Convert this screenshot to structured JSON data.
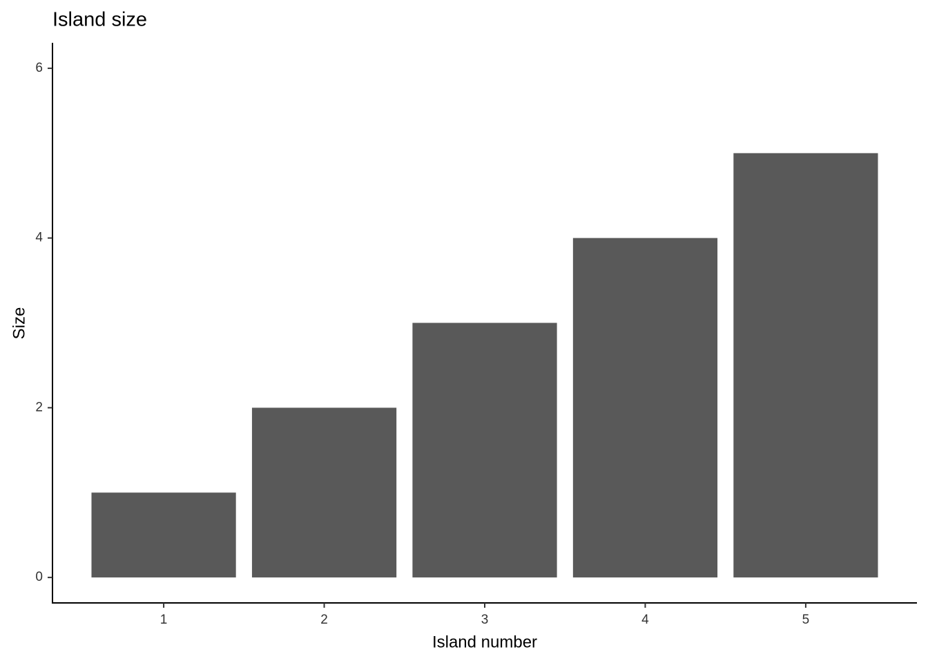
{
  "chart_data": {
    "type": "bar",
    "title": "Island size",
    "x_label": "Island number",
    "y_label": "Size",
    "categories": [
      "1",
      "2",
      "3",
      "4",
      "5"
    ],
    "values": [
      1,
      2,
      3,
      4,
      5
    ],
    "color": "#595959",
    "ylim": [
      -0.3,
      6.3
    ],
    "yticks": [
      0,
      2,
      4,
      6
    ]
  }
}
